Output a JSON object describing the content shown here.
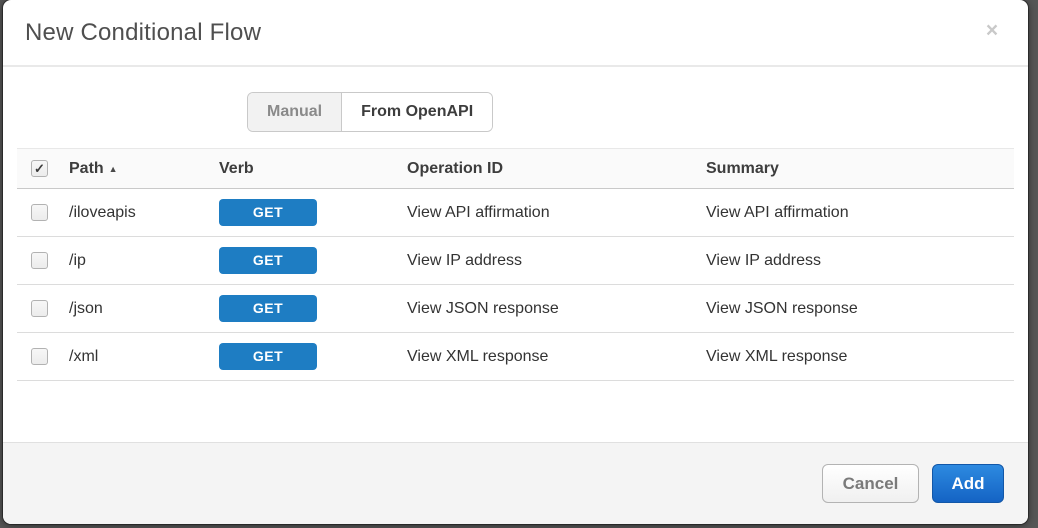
{
  "modal": {
    "title": "New Conditional Flow"
  },
  "icons": {
    "close": "×",
    "check": "✓",
    "sort_asc": "▲"
  },
  "tabs": [
    {
      "label": "Manual",
      "active": false
    },
    {
      "label": "From OpenAPI",
      "active": true
    }
  ],
  "table": {
    "header_checkbox_checked": true,
    "columns": [
      {
        "label": "Path",
        "sorted": "asc"
      },
      {
        "label": "Verb"
      },
      {
        "label": "Operation ID"
      },
      {
        "label": "Summary"
      }
    ],
    "rows": [
      {
        "checked": false,
        "path": "/iloveapis",
        "verb": "GET",
        "operation_id": "View API affirmation",
        "summary": "View API affirmation"
      },
      {
        "checked": false,
        "path": "/ip",
        "verb": "GET",
        "operation_id": "View IP address",
        "summary": "View IP address"
      },
      {
        "checked": false,
        "path": "/json",
        "verb": "GET",
        "operation_id": "View JSON response",
        "summary": "View JSON response"
      },
      {
        "checked": false,
        "path": "/xml",
        "verb": "GET",
        "operation_id": "View XML response",
        "summary": "View XML response"
      }
    ]
  },
  "footer": {
    "cancel_label": "Cancel",
    "add_label": "Add"
  },
  "colors": {
    "verb_badge_blue": "#1e7dc3",
    "add_button_blue": "#1a73cf",
    "overlay_gray": "#565656"
  }
}
